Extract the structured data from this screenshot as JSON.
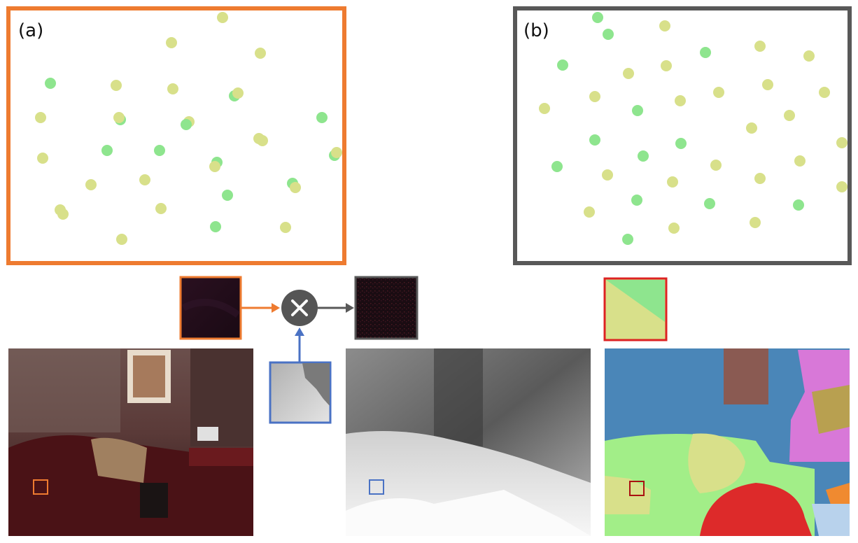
{
  "panels": {
    "a": {
      "label": "(a)",
      "border_color": "#ee7b30"
    },
    "b": {
      "label": "(b)",
      "border_color": "#585858"
    }
  },
  "colors": {
    "dot_green": "#8ee58e",
    "dot_yellow": "#d8e08a",
    "orange_arrow": "#ee7b30",
    "blue_arrow": "#4a72c4",
    "gray_arrow": "#585858",
    "red_box": "#dd2222",
    "operator_fill": "#555555"
  },
  "operator": {
    "symbol": "×",
    "icon": "multiply-icon"
  }
}
